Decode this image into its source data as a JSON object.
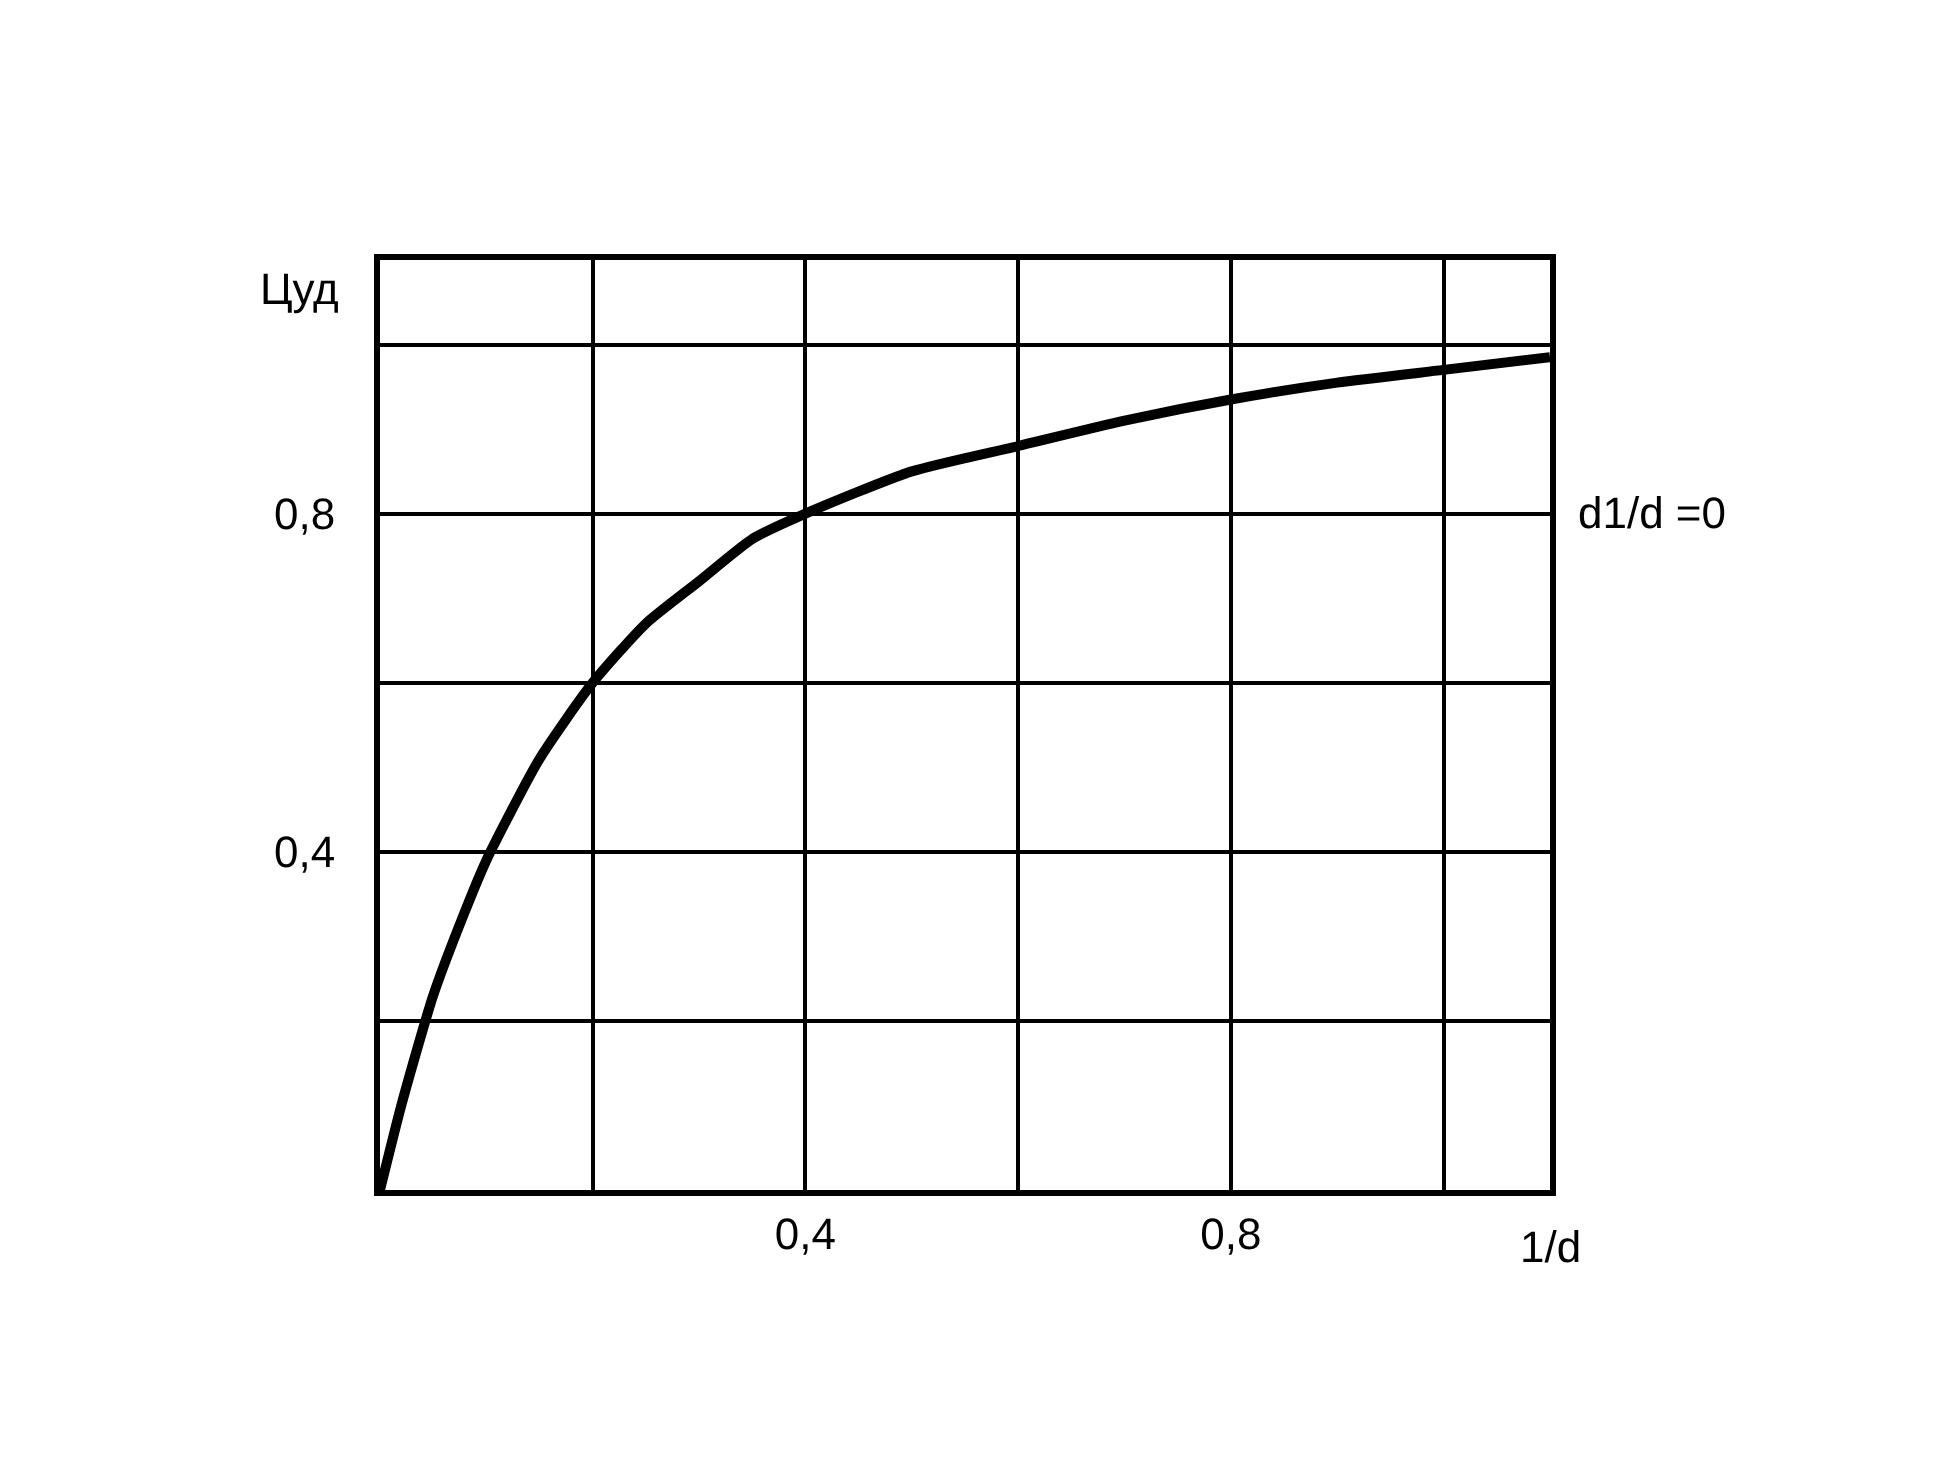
{
  "chart_data": {
    "type": "line",
    "xlabel": "1/d",
    "ylabel": "Цуд",
    "x": [
      0,
      0.02,
      0.05,
      0.08,
      0.1,
      0.15,
      0.2,
      0.25,
      0.3,
      0.35,
      0.4,
      0.5,
      0.6,
      0.7,
      0.8,
      0.9,
      1.0,
      1.1
    ],
    "series": [
      {
        "color": "#000000",
        "values": [
          0,
          0.1,
          0.23,
          0.33,
          0.39,
          0.51,
          0.6,
          0.67,
          0.72,
          0.77,
          0.8,
          0.85,
          0.88,
          0.91,
          0.935,
          0.955,
          0.97,
          0.985
        ]
      }
    ],
    "xlim": [
      0,
      1.1
    ],
    "ylim": [
      0,
      1.1
    ],
    "xticks": [
      {
        "value": 0.2,
        "label": null
      },
      {
        "value": 0.4,
        "label": "0,4"
      },
      {
        "value": 0.6,
        "label": null
      },
      {
        "value": 0.8,
        "label": "0,8"
      },
      {
        "value": 1.0,
        "label": null
      }
    ],
    "yticks": [
      {
        "value": 0.2,
        "label": null
      },
      {
        "value": 0.4,
        "label": "0,4"
      },
      {
        "value": 0.6,
        "label": null
      },
      {
        "value": 0.8,
        "label": "0,8"
      },
      {
        "value": 1.0,
        "label": null
      }
    ],
    "grid": true,
    "marker": "none",
    "line_style": "solid",
    "annotations": [
      "d1/d =0"
    ]
  }
}
